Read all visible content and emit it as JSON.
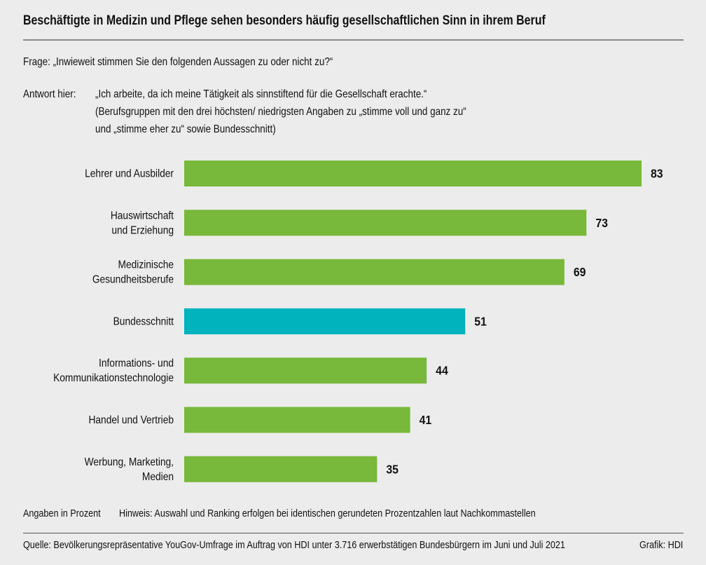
{
  "title": "Beschäftigte in Medizin und Pflege sehen besonders häufig gesellschaftlichen Sinn in ihrem Beruf",
  "question": "Frage: „Inwieweit stimmen Sie den folgenden Aussagen zu oder nicht zu?“",
  "answer_prefix": "Antwort hier:",
  "answer_text": "„Ich arbeite, da ich meine Tätigkeit als sinnstiftend für die Gesellschaft erachte.“",
  "answer_note_1": "(Berufsgruppen mit den drei höchsten/ niedrigsten Angaben zu „stimme voll und ganz zu“",
  "answer_note_2": "und „stimme eher zu“ sowie Bundesschnitt)",
  "unit_note": "Angaben in Prozent",
  "hint": "Hinweis: Auswahl und Ranking erfolgen bei identischen gerundeten Prozentzahlen laut Nachkommastellen",
  "source": "Quelle: Bevölkerungsrepräsentative YouGov-Umfrage im Auftrag von HDI unter 3.716 erwerbstätigen Bundesbürgern im Juni und Juli 2021",
  "credit": "Grafik: HDI",
  "chart_data": {
    "type": "bar",
    "orientation": "horizontal",
    "categories": [
      [
        "Lehrer und Ausbilder"
      ],
      [
        "Hauswirtschaft",
        "und Erziehung"
      ],
      [
        "Medizinische",
        "Gesundheitsberufe"
      ],
      [
        "Bundesschnitt"
      ],
      [
        "Informations- und",
        "Kommunikationstechnologie"
      ],
      [
        "Handel und Vertrieb"
      ],
      [
        "Werbung, Marketing,",
        "Medien"
      ]
    ],
    "values": [
      83,
      73,
      69,
      51,
      44,
      41,
      35
    ],
    "colors": [
      "#78b83a",
      "#78b83a",
      "#78b83a",
      "#00b3bd",
      "#78b83a",
      "#78b83a",
      "#78b83a"
    ],
    "xlim": [
      0,
      83
    ],
    "grid": false,
    "unit": "Prozent"
  }
}
